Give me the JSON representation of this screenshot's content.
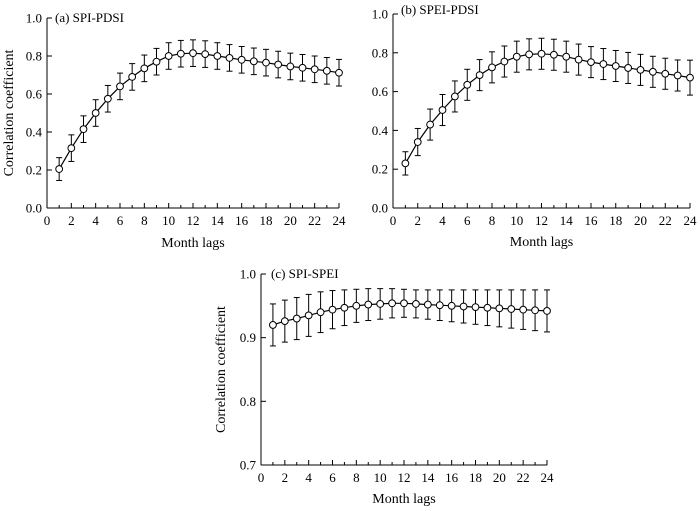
{
  "chart_data": [
    {
      "type": "line",
      "title": "(a) SPI-PDSI",
      "xlabel": "Month lags",
      "ylabel": "Correlation coefficient",
      "xlim": [
        0,
        24
      ],
      "ylim": [
        0.0,
        1.0
      ],
      "xticks": [
        "0",
        "2",
        "4",
        "6",
        "8",
        "10",
        "12",
        "14",
        "16",
        "18",
        "20",
        "22",
        "24"
      ],
      "yticks": [
        "0.0",
        "0.2",
        "0.4",
        "0.6",
        "0.8",
        "1.0"
      ],
      "grid": false,
      "x": [
        1,
        2,
        3,
        4,
        5,
        6,
        7,
        8,
        9,
        10,
        11,
        12,
        13,
        14,
        15,
        16,
        17,
        18,
        19,
        20,
        21,
        22,
        23,
        24
      ],
      "series": [
        {
          "values": [
            0.205,
            0.315,
            0.415,
            0.5,
            0.575,
            0.64,
            0.69,
            0.735,
            0.77,
            0.8,
            0.812,
            0.815,
            0.81,
            0.8,
            0.79,
            0.78,
            0.772,
            0.765,
            0.755,
            0.745,
            0.738,
            0.73,
            0.722,
            0.712
          ],
          "error": [
            0.06,
            0.07,
            0.07,
            0.07,
            0.07,
            0.07,
            0.07,
            0.07,
            0.07,
            0.07,
            0.07,
            0.07,
            0.07,
            0.07,
            0.07,
            0.07,
            0.07,
            0.07,
            0.07,
            0.07,
            0.07,
            0.07,
            0.07,
            0.07
          ]
        }
      ]
    },
    {
      "type": "line",
      "title": "(b) SPEI-PDSI",
      "xlabel": "Month lags",
      "ylabel": "",
      "xlim": [
        0,
        24
      ],
      "ylim": [
        0.0,
        1.0
      ],
      "xticks": [
        "0",
        "2",
        "4",
        "6",
        "8",
        "10",
        "12",
        "14",
        "16",
        "18",
        "20",
        "22",
        "24"
      ],
      "yticks": [
        "0.0",
        "0.2",
        "0.4",
        "0.6",
        "0.8",
        "1.0"
      ],
      "grid": false,
      "x": [
        1,
        2,
        3,
        4,
        5,
        6,
        7,
        8,
        9,
        10,
        11,
        12,
        13,
        14,
        15,
        16,
        17,
        18,
        19,
        20,
        21,
        22,
        23,
        24
      ],
      "series": [
        {
          "values": [
            0.23,
            0.34,
            0.43,
            0.505,
            0.575,
            0.635,
            0.685,
            0.725,
            0.755,
            0.78,
            0.792,
            0.795,
            0.79,
            0.78,
            0.765,
            0.752,
            0.742,
            0.732,
            0.722,
            0.712,
            0.702,
            0.692,
            0.683,
            0.672
          ],
          "error": [
            0.06,
            0.07,
            0.08,
            0.08,
            0.08,
            0.08,
            0.08,
            0.08,
            0.08,
            0.08,
            0.08,
            0.08,
            0.08,
            0.08,
            0.08,
            0.08,
            0.08,
            0.08,
            0.08,
            0.08,
            0.08,
            0.08,
            0.08,
            0.09
          ]
        }
      ]
    },
    {
      "type": "line",
      "title": "(c) SPI-SPEI",
      "xlabel": "Month lags",
      "ylabel": "Correlation coefficient",
      "xlim": [
        0,
        24
      ],
      "ylim": [
        0.7,
        1.0
      ],
      "xticks": [
        "0",
        "2",
        "4",
        "6",
        "8",
        "10",
        "12",
        "14",
        "16",
        "18",
        "20",
        "22",
        "24"
      ],
      "yticks": [
        "0.7",
        "0.8",
        "0.9",
        "1.0"
      ],
      "grid": false,
      "x": [
        1,
        2,
        3,
        4,
        5,
        6,
        7,
        8,
        9,
        10,
        11,
        12,
        13,
        14,
        15,
        16,
        17,
        18,
        19,
        20,
        21,
        22,
        23,
        24
      ],
      "series": [
        {
          "values": [
            0.92,
            0.926,
            0.93,
            0.935,
            0.94,
            0.944,
            0.947,
            0.95,
            0.952,
            0.953,
            0.954,
            0.954,
            0.953,
            0.952,
            0.951,
            0.95,
            0.949,
            0.948,
            0.947,
            0.946,
            0.945,
            0.944,
            0.943,
            0.942
          ],
          "error": [
            0.033,
            0.033,
            0.033,
            0.033,
            0.032,
            0.03,
            0.028,
            0.026,
            0.025,
            0.024,
            0.023,
            0.022,
            0.022,
            0.023,
            0.024,
            0.025,
            0.026,
            0.027,
            0.028,
            0.029,
            0.03,
            0.031,
            0.032,
            0.033
          ]
        }
      ]
    }
  ]
}
